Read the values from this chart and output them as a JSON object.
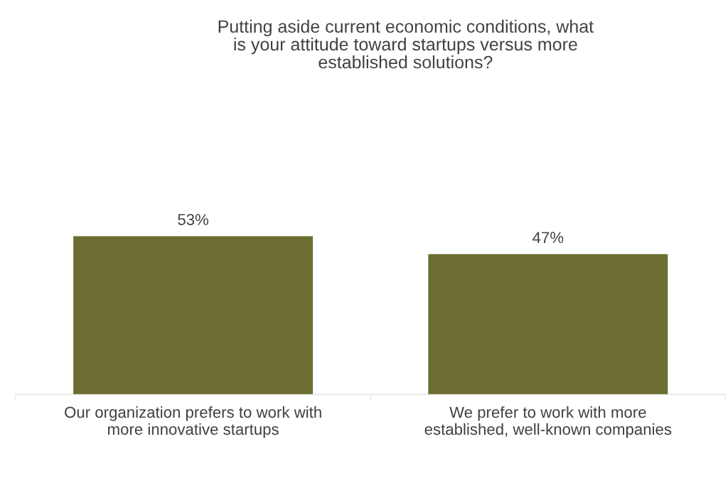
{
  "chart_data": {
    "type": "bar",
    "title": "Putting aside current economic conditions, what\nis your attitude toward startups versus more\nestablished solutions?",
    "categories": [
      "Our organization prefers to work with\nmore innovative startups",
      "We prefer to work with more\nestablished, well-known companies"
    ],
    "values": [
      53,
      47
    ],
    "color": "#6b6e30",
    "value_labels": [
      "53%",
      "47%"
    ],
    "grid": false,
    "legend": false
  }
}
